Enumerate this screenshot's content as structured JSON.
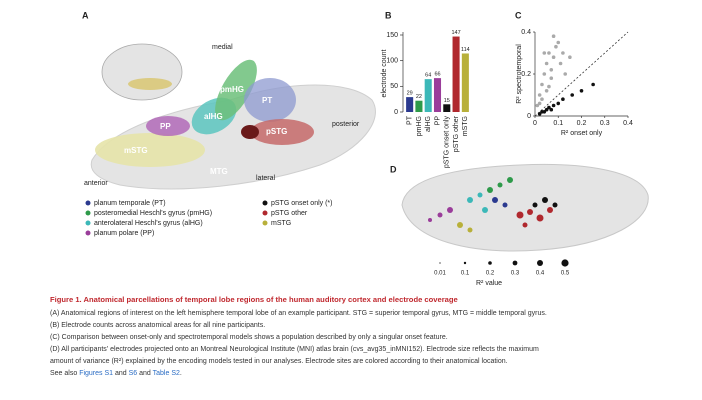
{
  "panel_a": {
    "label": "A",
    "directions": {
      "medial": "medial",
      "posterior": "posterior",
      "lateral": "lateral",
      "anterior": "anterior"
    },
    "regions": [
      "PP",
      "alHG",
      "pmHG",
      "PT",
      "pSTG",
      "mSTG",
      "MTG"
    ],
    "legend": [
      {
        "color": "#2b3a8f",
        "label": "planum temporale (PT)"
      },
      {
        "color": "#2e9a4a",
        "label": "posteromedial Heschl's gyrus (pmHG)"
      },
      {
        "color": "#3cb8b8",
        "label": "anterolateral Heschl's gyrus (alHG)"
      },
      {
        "color": "#9a3d9a",
        "label": "planum polare (PP)"
      },
      {
        "color": "#111111",
        "label": "pSTG onset only (*)"
      },
      {
        "color": "#b0282e",
        "label": "pSTG other"
      },
      {
        "color": "#b8b03a",
        "label": "mSTG"
      }
    ]
  },
  "chart_data": [
    {
      "type": "bar",
      "panel": "B",
      "ylabel": "electrode count",
      "categories": [
        "PT",
        "pmHG",
        "alHG",
        "PP",
        "pSTG onset only",
        "pSTG other",
        "mSTG"
      ],
      "values": [
        29,
        22,
        64,
        66,
        15,
        147,
        114
      ],
      "colors": [
        "#2b3a8f",
        "#2e9a4a",
        "#3cb8b8",
        "#9a3d9a",
        "#111111",
        "#b0282e",
        "#b8b03a"
      ],
      "ylim": [
        0,
        150
      ],
      "yticks": [
        0,
        50,
        100,
        150
      ]
    },
    {
      "type": "scatter",
      "panel": "C",
      "xlabel": "R² onset only",
      "ylabel": "R² spectrotemporal",
      "xlim": [
        0,
        0.4
      ],
      "ylim": [
        0,
        0.4
      ],
      "xticks": [
        0,
        0.1,
        0.2,
        0.3,
        0.4
      ],
      "yticks": [
        0,
        0.2,
        0.4
      ],
      "series": [
        {
          "color": "#aaaaaa",
          "x": [
            0.01,
            0.02,
            0.03,
            0.04,
            0.05,
            0.06,
            0.07,
            0.08,
            0.09,
            0.1,
            0.05,
            0.03,
            0.07,
            0.12,
            0.11,
            0.02,
            0.06,
            0.08,
            0.13,
            0.04,
            0.15
          ],
          "values": [
            0.05,
            0.1,
            0.15,
            0.2,
            0.25,
            0.3,
            0.22,
            0.28,
            0.33,
            0.35,
            0.12,
            0.08,
            0.18,
            0.3,
            0.25,
            0.06,
            0.14,
            0.38,
            0.2,
            0.3,
            0.28
          ]
        },
        {
          "color": "#111111",
          "x": [
            0.02,
            0.03,
            0.05,
            0.06,
            0.08,
            0.1,
            0.12,
            0.16,
            0.2,
            0.25,
            0.04,
            0.07
          ],
          "values": [
            0.01,
            0.02,
            0.03,
            0.04,
            0.05,
            0.06,
            0.08,
            0.1,
            0.12,
            0.15,
            0.02,
            0.03
          ]
        }
      ]
    }
  ],
  "panel_d": {
    "label": "D",
    "size_values": [
      0.01,
      0.1,
      0.2,
      0.3,
      0.4,
      0.5
    ],
    "size_label": "R² value"
  },
  "caption": {
    "title": "Figure 1. Anatomical parcellations of temporal lobe regions of the human auditory cortex and electrode coverage",
    "lines": [
      "(A) Anatomical regions of interest on the left hemisphere temporal lobe of an example participant. STG = superior temporal gyrus, MTG = middle temporal gyrus.",
      "(B) Electrode counts across anatomical areas for all nine participants.",
      "(C) Comparison between onset-only and spectrotemporal models shows a population described by only a singular onset feature.",
      "(D) All participants' electrodes projected onto an Montreal Neurological Institute (MNI) atlas brain (cvs_avg35_inMNI152). Electrode size reflects the maximum",
      "amount of variance (R²) explained by the encoding models tested in our analyses. Electrode sites are colored according to their anatomical location."
    ],
    "see_also": [
      "See also ",
      "Figures S1",
      " and ",
      "S6",
      " and ",
      "Table S2",
      "."
    ]
  }
}
